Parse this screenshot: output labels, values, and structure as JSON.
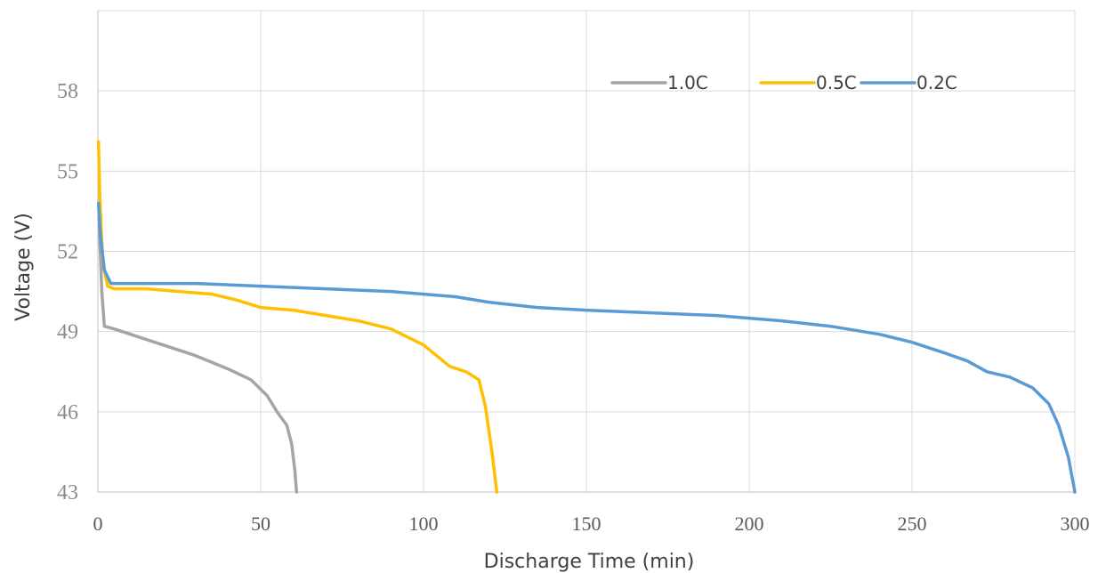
{
  "chart_data": {
    "type": "line",
    "title": "",
    "xlabel": "Discharge Time (min)",
    "ylabel": "Voltage (V)",
    "xlim": [
      0,
      300
    ],
    "ylim": [
      43,
      61
    ],
    "x_ticks": [
      0,
      50,
      100,
      150,
      200,
      250,
      300
    ],
    "y_ticks": [
      43,
      46,
      49,
      52,
      55,
      58
    ],
    "grid": true,
    "legend_position": "top-right",
    "series": [
      {
        "name": "1.0C",
        "color": "#a5a5a5",
        "points": [
          [
            0.3,
            53.5
          ],
          [
            1.2,
            50.5
          ],
          [
            2,
            49.2
          ],
          [
            5,
            49.1
          ],
          [
            10,
            48.9
          ],
          [
            20,
            48.5
          ],
          [
            30,
            48.1
          ],
          [
            40,
            47.6
          ],
          [
            47,
            47.2
          ],
          [
            52,
            46.6
          ],
          [
            55,
            46.0
          ],
          [
            58,
            45.5
          ],
          [
            59.5,
            44.8
          ],
          [
            60.5,
            43.8
          ],
          [
            61,
            43.0
          ]
        ]
      },
      {
        "name": "0.5C",
        "color": "#ffc000",
        "points": [
          [
            0.2,
            56.1
          ],
          [
            0.6,
            54.0
          ],
          [
            1.5,
            51.6
          ],
          [
            3,
            50.7
          ],
          [
            5,
            50.6
          ],
          [
            15,
            50.6
          ],
          [
            25,
            50.5
          ],
          [
            35,
            50.4
          ],
          [
            42,
            50.2
          ],
          [
            50,
            49.9
          ],
          [
            60,
            49.8
          ],
          [
            70,
            49.6
          ],
          [
            80,
            49.4
          ],
          [
            90,
            49.1
          ],
          [
            100,
            48.5
          ],
          [
            108,
            47.7
          ],
          [
            113,
            47.5
          ],
          [
            117,
            47.2
          ],
          [
            119,
            46.2
          ],
          [
            121,
            44.5
          ],
          [
            122.5,
            43.0
          ]
        ]
      },
      {
        "name": "0.2C",
        "color": "#5b9bd5",
        "points": [
          [
            0.2,
            53.8
          ],
          [
            0.8,
            52.6
          ],
          [
            2,
            51.3
          ],
          [
            4,
            50.8
          ],
          [
            10,
            50.8
          ],
          [
            30,
            50.8
          ],
          [
            50,
            50.7
          ],
          [
            70,
            50.6
          ],
          [
            90,
            50.5
          ],
          [
            110,
            50.3
          ],
          [
            120,
            50.1
          ],
          [
            135,
            49.9
          ],
          [
            150,
            49.8
          ],
          [
            170,
            49.7
          ],
          [
            190,
            49.6
          ],
          [
            210,
            49.4
          ],
          [
            225,
            49.2
          ],
          [
            240,
            48.9
          ],
          [
            250,
            48.6
          ],
          [
            260,
            48.2
          ],
          [
            267,
            47.9
          ],
          [
            273,
            47.5
          ],
          [
            280,
            47.3
          ],
          [
            287,
            46.9
          ],
          [
            292,
            46.3
          ],
          [
            295,
            45.5
          ],
          [
            298,
            44.3
          ],
          [
            300,
            43.0
          ]
        ]
      }
    ]
  }
}
